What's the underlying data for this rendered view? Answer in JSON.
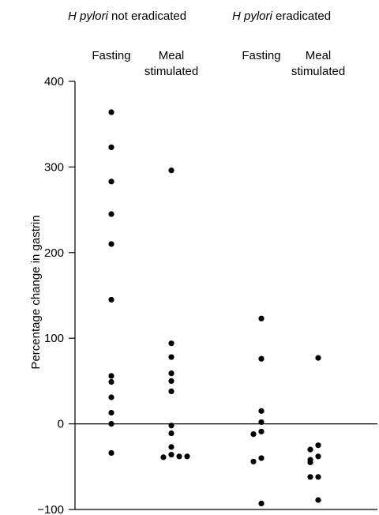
{
  "chart_data": {
    "type": "scatter",
    "title": "",
    "ylabel": "Percentage change in gastrin",
    "ylim": [
      -100,
      400
    ],
    "yticks": [
      -100,
      0,
      100,
      200,
      300,
      400
    ],
    "ytick_labels": [
      "−100",
      "0",
      "100",
      "200",
      "300",
      "400"
    ],
    "grid": false,
    "groups": [
      {
        "italic": "H pylori",
        "rest": " not eradicated"
      },
      {
        "italic": "H pylori",
        "rest": " eradicated"
      }
    ],
    "columns": [
      {
        "label_lines": [
          "Fasting"
        ],
        "group": 0,
        "values": [
          364,
          323,
          283,
          245,
          210,
          145,
          56,
          49,
          31,
          13,
          0,
          -34
        ]
      },
      {
        "label_lines": [
          "Meal",
          "stimulated"
        ],
        "group": 0,
        "values": [
          296,
          94,
          78,
          59,
          50,
          38,
          -2,
          -11,
          -27,
          -36,
          -39,
          -38,
          -38
        ]
      },
      {
        "label_lines": [
          "Fasting"
        ],
        "group": 1,
        "values": [
          123,
          76,
          15,
          2,
          -9,
          -12,
          -40,
          -44,
          -93
        ]
      },
      {
        "label_lines": [
          "Meal",
          "stimulated"
        ],
        "group": 1,
        "values": [
          77,
          -25,
          -30,
          -38,
          -42,
          -45,
          -62,
          -62,
          -89
        ]
      }
    ]
  }
}
